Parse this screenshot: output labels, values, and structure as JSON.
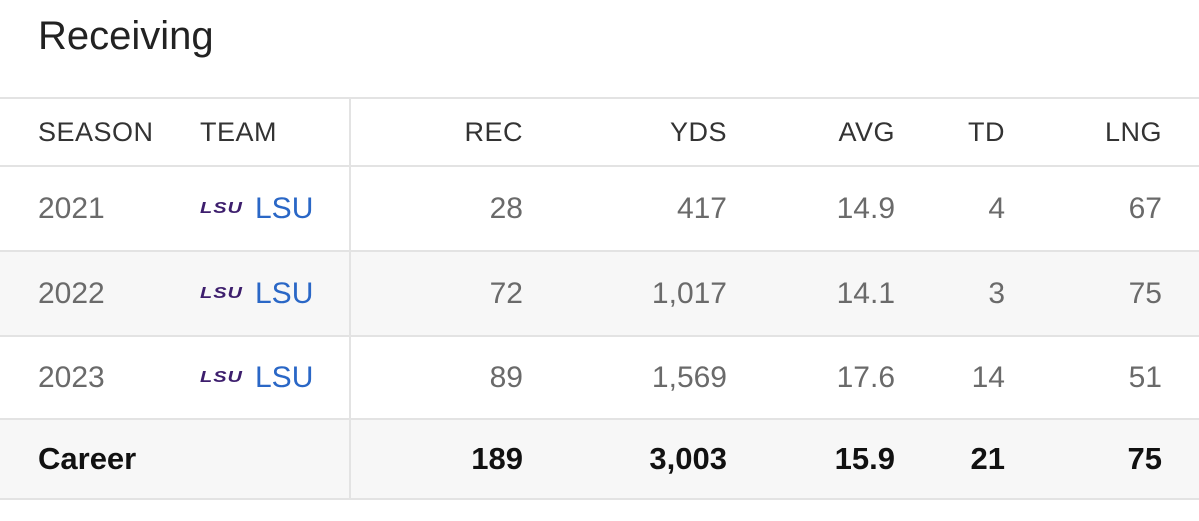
{
  "title": "Receiving",
  "table": {
    "headers": [
      "SEASON",
      "TEAM",
      "REC",
      "YDS",
      "AVG",
      "TD",
      "LNG"
    ],
    "rows": [
      [
        "2021",
        "LSU",
        "28",
        "417",
        "14.9",
        "4",
        "67"
      ],
      [
        "2022",
        "LSU",
        "72",
        "1,017",
        "14.1",
        "3",
        "75"
      ],
      [
        "2023",
        "LSU",
        "89",
        "1,569",
        "17.6",
        "14",
        "51"
      ]
    ],
    "footer": {
      "label": "Career",
      "values": [
        "189",
        "3,003",
        "15.9",
        "21",
        "75"
      ]
    }
  }
}
